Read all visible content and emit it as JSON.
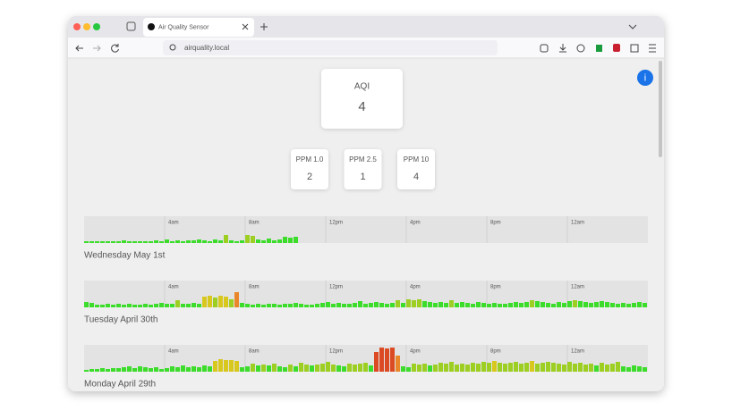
{
  "browser": {
    "tab_title": "Air Quality Sensor",
    "url": "airquality.local"
  },
  "info_button": "i",
  "aqi": {
    "label": "AQI",
    "value": "4"
  },
  "ppm": [
    {
      "label": "PPM 1.0",
      "value": "2"
    },
    {
      "label": "PPM 2.5",
      "value": "1"
    },
    {
      "label": "PPM 10",
      "value": "4"
    }
  ],
  "time_labels": [
    "4am",
    "8am",
    "12pm",
    "4pm",
    "8pm",
    "12am"
  ],
  "days": [
    {
      "date": "Wednesday May 1st",
      "values": [
        2,
        2,
        2,
        2,
        2,
        2,
        2,
        3,
        2,
        2,
        2,
        2,
        2,
        3,
        2,
        4,
        2,
        3,
        2,
        3,
        3,
        4,
        3,
        2,
        4,
        3,
        9,
        3,
        2,
        3,
        9,
        8,
        4,
        3,
        5,
        3,
        4,
        7,
        6,
        7
      ]
    },
    {
      "date": "Tuesday April 30th",
      "values": [
        6,
        5,
        3,
        3,
        4,
        3,
        4,
        3,
        4,
        3,
        3,
        4,
        3,
        4,
        5,
        4,
        4,
        8,
        4,
        4,
        5,
        4,
        12,
        13,
        11,
        13,
        12,
        9,
        17,
        5,
        4,
        3,
        4,
        3,
        4,
        4,
        3,
        4,
        4,
        5,
        4,
        3,
        3,
        4,
        5,
        6,
        4,
        5,
        4,
        4,
        5,
        7,
        4,
        5,
        6,
        5,
        4,
        5,
        8,
        5,
        9,
        8,
        9,
        7,
        6,
        5,
        6,
        5,
        8,
        5,
        6,
        5,
        4,
        6,
        5,
        4,
        5,
        4,
        4,
        5,
        6,
        5,
        6,
        8,
        7,
        6,
        5,
        4,
        6,
        5,
        7,
        8,
        7,
        6,
        5,
        6,
        7,
        6,
        5,
        4,
        5,
        4,
        5,
        6,
        5
      ]
    },
    {
      "date": "Monday April 29th",
      "values": [
        2,
        3,
        3,
        4,
        3,
        4,
        4,
        5,
        6,
        4,
        6,
        5,
        4,
        5,
        3,
        4,
        6,
        5,
        7,
        5,
        6,
        5,
        7,
        6,
        12,
        14,
        13,
        13,
        12,
        5,
        6,
        9,
        7,
        8,
        7,
        9,
        6,
        5,
        8,
        6,
        10,
        8,
        7,
        8,
        9,
        11,
        8,
        7,
        6,
        9,
        8,
        9,
        10,
        7,
        22,
        27,
        26,
        27,
        18,
        6,
        5,
        9,
        8,
        9,
        7,
        8,
        10,
        9,
        11,
        8,
        9,
        8,
        10,
        9,
        11,
        10,
        12,
        10,
        9,
        10,
        11,
        9,
        10,
        12,
        9,
        10,
        11,
        10,
        9,
        8,
        11,
        9,
        10,
        8,
        9,
        7,
        10,
        8,
        9,
        11,
        6,
        5,
        7,
        6,
        5
      ]
    }
  ]
}
